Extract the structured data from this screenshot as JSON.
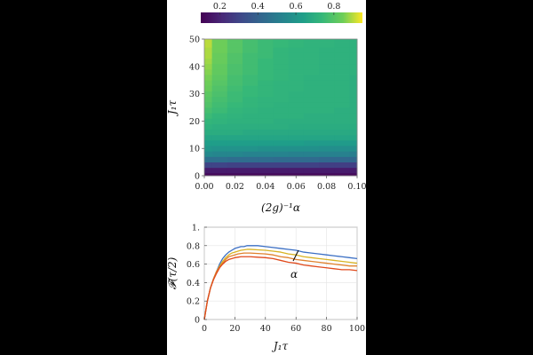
{
  "colorbar": {
    "ticks": [
      "0.2",
      "0.4",
      "0.6",
      "0.8"
    ],
    "values": [
      0.2,
      0.4,
      0.6,
      0.8
    ],
    "range": [
      0.1,
      0.95
    ]
  },
  "chart_data": [
    {
      "type": "heatmap",
      "xlabel": "(2g)⁻¹α",
      "ylabel": "J₁τ",
      "xlim": [
        0,
        0.1
      ],
      "ylim": [
        0,
        50
      ],
      "x_ticks": [
        "0.00",
        "0.02",
        "0.04",
        "0.06",
        "0.08",
        "0.10"
      ],
      "y_ticks": [
        "0",
        "10",
        "20",
        "30",
        "40",
        "50"
      ],
      "x_tick_values": [
        0,
        0.02,
        0.04,
        0.06,
        0.08,
        0.1
      ],
      "y_tick_values": [
        0,
        10,
        20,
        30,
        40,
        50
      ],
      "x": [
        0,
        0.01,
        0.02,
        0.03,
        0.04,
        0.05,
        0.06,
        0.07,
        0.08,
        0.09,
        0.1
      ],
      "y": [
        0,
        2,
        4,
        6,
        8,
        10,
        12,
        14,
        16,
        18,
        20,
        22,
        24,
        26,
        28,
        30,
        32,
        34,
        36,
        38,
        40,
        42,
        44,
        46,
        48,
        50
      ],
      "z": [
        [
          0.12,
          0.12,
          0.12,
          0.12,
          0.12,
          0.12,
          0.12,
          0.12,
          0.12,
          0.12,
          0.12
        ],
        [
          0.17,
          0.17,
          0.17,
          0.17,
          0.17,
          0.17,
          0.17,
          0.17,
          0.17,
          0.17,
          0.17
        ],
        [
          0.3,
          0.3,
          0.29,
          0.29,
          0.29,
          0.29,
          0.29,
          0.29,
          0.28,
          0.28,
          0.28
        ],
        [
          0.45,
          0.45,
          0.44,
          0.44,
          0.44,
          0.43,
          0.43,
          0.43,
          0.42,
          0.42,
          0.42
        ],
        [
          0.55,
          0.54,
          0.54,
          0.53,
          0.53,
          0.53,
          0.52,
          0.52,
          0.52,
          0.52,
          0.51
        ],
        [
          0.6,
          0.59,
          0.59,
          0.59,
          0.58,
          0.58,
          0.58,
          0.58,
          0.57,
          0.57,
          0.57
        ],
        [
          0.63,
          0.63,
          0.63,
          0.63,
          0.63,
          0.63,
          0.63,
          0.62,
          0.62,
          0.62,
          0.62
        ],
        [
          0.66,
          0.66,
          0.66,
          0.66,
          0.66,
          0.66,
          0.66,
          0.66,
          0.66,
          0.66,
          0.66
        ],
        [
          0.69,
          0.69,
          0.69,
          0.68,
          0.68,
          0.68,
          0.68,
          0.68,
          0.68,
          0.68,
          0.68
        ],
        [
          0.71,
          0.7,
          0.7,
          0.7,
          0.7,
          0.7,
          0.69,
          0.69,
          0.69,
          0.69,
          0.69
        ],
        [
          0.73,
          0.72,
          0.71,
          0.71,
          0.71,
          0.7,
          0.7,
          0.7,
          0.7,
          0.7,
          0.7
        ],
        [
          0.75,
          0.73,
          0.72,
          0.71,
          0.71,
          0.71,
          0.71,
          0.7,
          0.7,
          0.7,
          0.7
        ],
        [
          0.77,
          0.75,
          0.73,
          0.72,
          0.71,
          0.71,
          0.71,
          0.71,
          0.71,
          0.7,
          0.7
        ],
        [
          0.79,
          0.76,
          0.74,
          0.73,
          0.72,
          0.71,
          0.71,
          0.71,
          0.71,
          0.71,
          0.7
        ],
        [
          0.8,
          0.77,
          0.75,
          0.73,
          0.72,
          0.72,
          0.71,
          0.71,
          0.71,
          0.71,
          0.7
        ],
        [
          0.81,
          0.78,
          0.75,
          0.74,
          0.73,
          0.72,
          0.71,
          0.71,
          0.71,
          0.71,
          0.7
        ],
        [
          0.83,
          0.79,
          0.76,
          0.74,
          0.73,
          0.72,
          0.72,
          0.71,
          0.71,
          0.71,
          0.7
        ],
        [
          0.84,
          0.8,
          0.77,
          0.75,
          0.73,
          0.72,
          0.72,
          0.71,
          0.71,
          0.71,
          0.7
        ],
        [
          0.85,
          0.81,
          0.77,
          0.75,
          0.74,
          0.73,
          0.72,
          0.71,
          0.71,
          0.71,
          0.7
        ],
        [
          0.86,
          0.82,
          0.78,
          0.76,
          0.74,
          0.73,
          0.72,
          0.72,
          0.71,
          0.71,
          0.71
        ],
        [
          0.87,
          0.82,
          0.78,
          0.76,
          0.74,
          0.73,
          0.72,
          0.72,
          0.71,
          0.71,
          0.71
        ],
        [
          0.88,
          0.83,
          0.79,
          0.76,
          0.74,
          0.73,
          0.72,
          0.72,
          0.71,
          0.71,
          0.71
        ],
        [
          0.89,
          0.83,
          0.79,
          0.76,
          0.75,
          0.73,
          0.72,
          0.72,
          0.71,
          0.71,
          0.71
        ],
        [
          0.89,
          0.84,
          0.8,
          0.77,
          0.75,
          0.73,
          0.72,
          0.72,
          0.71,
          0.71,
          0.71
        ],
        [
          0.9,
          0.84,
          0.8,
          0.77,
          0.75,
          0.74,
          0.73,
          0.72,
          0.72,
          0.71,
          0.71
        ],
        [
          0.9,
          0.84,
          0.8,
          0.77,
          0.75,
          0.74,
          0.73,
          0.72,
          0.72,
          0.71,
          0.71
        ]
      ]
    },
    {
      "type": "line",
      "xlabel": "J₁τ",
      "ylabel": "𝓕(τ/2)",
      "xlim": [
        0,
        100
      ],
      "ylim": [
        0,
        1
      ],
      "x_ticks": [
        "0",
        "20",
        "40",
        "60",
        "80",
        "100"
      ],
      "y_ticks": [
        "0",
        "0.2",
        "0.4",
        "0.6",
        "0.8",
        "1."
      ],
      "x_tick_values": [
        0,
        20,
        40,
        60,
        80,
        100
      ],
      "y_tick_values": [
        0,
        0.2,
        0.4,
        0.6,
        0.8,
        1.0
      ],
      "grid": true,
      "annotation": "α",
      "series": [
        {
          "color": "#3b6fc4",
          "x": [
            0,
            2,
            4,
            6,
            8,
            10,
            12,
            14,
            16,
            18,
            20,
            22,
            24,
            26,
            28,
            30,
            35,
            40,
            45,
            50,
            55,
            60,
            65,
            70,
            75,
            80,
            85,
            90,
            95,
            100
          ],
          "values": [
            0.0,
            0.2,
            0.34,
            0.44,
            0.52,
            0.6,
            0.66,
            0.7,
            0.73,
            0.75,
            0.77,
            0.78,
            0.79,
            0.79,
            0.8,
            0.8,
            0.8,
            0.79,
            0.78,
            0.77,
            0.76,
            0.75,
            0.73,
            0.72,
            0.71,
            0.7,
            0.69,
            0.68,
            0.67,
            0.66
          ]
        },
        {
          "color": "#d8b324",
          "x": [
            0,
            2,
            4,
            6,
            8,
            10,
            12,
            14,
            16,
            18,
            20,
            22,
            24,
            26,
            28,
            30,
            35,
            40,
            45,
            50,
            55,
            60,
            65,
            70,
            75,
            80,
            85,
            90,
            95,
            100
          ],
          "values": [
            0.0,
            0.2,
            0.34,
            0.44,
            0.52,
            0.58,
            0.63,
            0.67,
            0.7,
            0.72,
            0.73,
            0.74,
            0.75,
            0.755,
            0.76,
            0.76,
            0.755,
            0.75,
            0.74,
            0.73,
            0.71,
            0.7,
            0.68,
            0.67,
            0.66,
            0.65,
            0.64,
            0.63,
            0.62,
            0.61
          ]
        },
        {
          "color": "#e0812c",
          "x": [
            0,
            2,
            4,
            6,
            8,
            10,
            12,
            14,
            16,
            18,
            20,
            22,
            24,
            26,
            28,
            30,
            35,
            40,
            45,
            50,
            55,
            60,
            65,
            70,
            75,
            80,
            85,
            90,
            95,
            100
          ],
          "values": [
            0.0,
            0.2,
            0.34,
            0.44,
            0.52,
            0.57,
            0.61,
            0.65,
            0.68,
            0.69,
            0.7,
            0.71,
            0.715,
            0.72,
            0.72,
            0.72,
            0.715,
            0.71,
            0.7,
            0.68,
            0.67,
            0.65,
            0.64,
            0.63,
            0.62,
            0.61,
            0.6,
            0.59,
            0.58,
            0.58
          ]
        },
        {
          "color": "#e04a1c",
          "x": [
            0,
            2,
            4,
            6,
            8,
            10,
            12,
            14,
            16,
            18,
            20,
            22,
            24,
            26,
            28,
            30,
            35,
            40,
            45,
            50,
            55,
            60,
            65,
            70,
            75,
            80,
            85,
            90,
            95,
            100
          ],
          "values": [
            0.0,
            0.2,
            0.34,
            0.43,
            0.5,
            0.56,
            0.6,
            0.63,
            0.65,
            0.66,
            0.67,
            0.675,
            0.68,
            0.68,
            0.68,
            0.68,
            0.675,
            0.67,
            0.66,
            0.64,
            0.62,
            0.61,
            0.59,
            0.58,
            0.57,
            0.56,
            0.55,
            0.54,
            0.54,
            0.53
          ]
        }
      ]
    }
  ]
}
